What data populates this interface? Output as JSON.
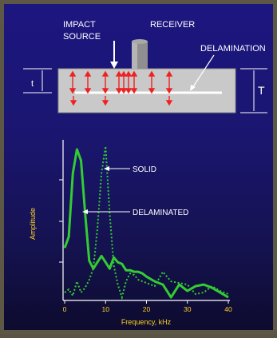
{
  "diagram": {
    "labels": {
      "impact_source_1": "IMPACT",
      "impact_source_2": "SOURCE",
      "receiver": "RECEIVER",
      "delamination": "DELAMINATION",
      "thin_thickness": "t",
      "full_thickness": "T"
    }
  },
  "chart_data": {
    "type": "line",
    "title": "",
    "xlabel": "Frequency, kHz",
    "ylabel": "Amplitude",
    "xlim": [
      0,
      40
    ],
    "ylim": [
      0,
      1
    ],
    "xticks": [
      "0",
      "10",
      "20",
      "30",
      "40"
    ],
    "annotations": [
      "SOLID",
      "DELAMINATED"
    ],
    "series": [
      {
        "name": "SOLID",
        "style": "dotted",
        "color": "#33cc33",
        "x": [
          0,
          1,
          2,
          3,
          4,
          5,
          6,
          7,
          8,
          9,
          10,
          11,
          12,
          13,
          14,
          15,
          16,
          17,
          18,
          19,
          20,
          22,
          24,
          26,
          28,
          30,
          32,
          34,
          36,
          38,
          40
        ],
        "y": [
          0.05,
          0.07,
          0.03,
          0.12,
          0.05,
          0.08,
          0.13,
          0.2,
          0.45,
          0.8,
          0.97,
          0.55,
          0.22,
          0.1,
          0.02,
          0.12,
          0.17,
          0.16,
          0.13,
          0.12,
          0.11,
          0.09,
          0.18,
          0.12,
          0.11,
          0.1,
          0.04,
          0.05,
          0.09,
          0.06,
          0.04
        ]
      },
      {
        "name": "DELAMINATED",
        "style": "solid",
        "color": "#33cc33",
        "x": [
          0,
          1,
          2,
          3,
          4,
          5,
          6,
          7,
          8,
          9,
          10,
          11,
          12,
          13,
          14,
          15,
          16,
          17,
          18,
          19,
          20,
          22,
          24,
          26,
          28,
          30,
          32,
          34,
          36,
          38,
          40
        ],
        "y": [
          0.33,
          0.4,
          0.8,
          0.95,
          0.88,
          0.55,
          0.25,
          0.2,
          0.24,
          0.28,
          0.24,
          0.2,
          0.27,
          0.24,
          0.23,
          0.19,
          0.19,
          0.18,
          0.18,
          0.17,
          0.15,
          0.12,
          0.1,
          0.02,
          0.1,
          0.06,
          0.09,
          0.1,
          0.08,
          0.05,
          0.02
        ]
      }
    ]
  }
}
